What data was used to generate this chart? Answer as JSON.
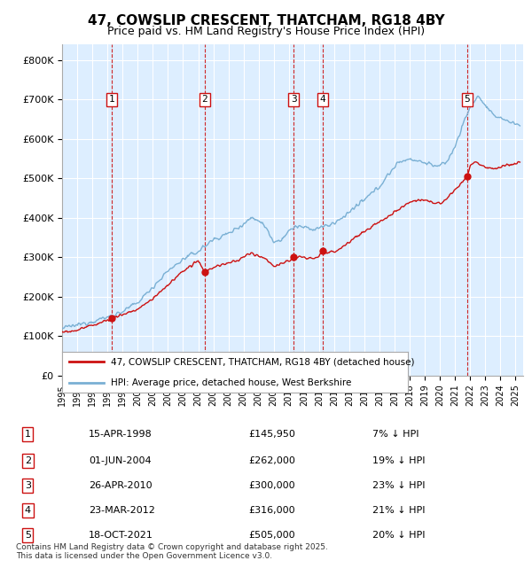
{
  "title": "47, COWSLIP CRESCENT, THATCHAM, RG18 4BY",
  "subtitle": "Price paid vs. HM Land Registry's House Price Index (HPI)",
  "ylabel_ticks": [
    "£0",
    "£100K",
    "£200K",
    "£300K",
    "£400K",
    "£500K",
    "£600K",
    "£700K",
    "£800K"
  ],
  "ytick_values": [
    0,
    100000,
    200000,
    300000,
    400000,
    500000,
    600000,
    700000,
    800000
  ],
  "ylim": [
    0,
    840000
  ],
  "xlim_start": 1995.0,
  "xlim_end": 2025.5,
  "background_color": "#ffffff",
  "plot_bg_color": "#ddeeff",
  "grid_color": "#ffffff",
  "transactions": [
    {
      "num": 1,
      "date_dec": 1998.29,
      "price": 145950,
      "label": "15-APR-1998",
      "price_str": "£145,950",
      "pct": "7% ↓ HPI"
    },
    {
      "num": 2,
      "date_dec": 2004.42,
      "price": 262000,
      "label": "01-JUN-2004",
      "price_str": "£262,000",
      "pct": "19% ↓ HPI"
    },
    {
      "num": 3,
      "date_dec": 2010.32,
      "price": 300000,
      "label": "26-APR-2010",
      "price_str": "£300,000",
      "pct": "23% ↓ HPI"
    },
    {
      "num": 4,
      "date_dec": 2012.23,
      "price": 316000,
      "label": "23-MAR-2012",
      "price_str": "£316,000",
      "pct": "21% ↓ HPI"
    },
    {
      "num": 5,
      "date_dec": 2021.8,
      "price": 505000,
      "label": "18-OCT-2021",
      "price_str": "£505,000",
      "pct": "20% ↓ HPI"
    }
  ],
  "hpi_color": "#7ab0d4",
  "price_color": "#cc1111",
  "legend_hpi_label": "HPI: Average price, detached house, West Berkshire",
  "legend_price_label": "47, COWSLIP CRESCENT, THATCHAM, RG18 4BY (detached house)",
  "footer": "Contains HM Land Registry data © Crown copyright and database right 2025.\nThis data is licensed under the Open Government Licence v3.0.",
  "x_ticks": [
    1995,
    1996,
    1997,
    1998,
    1999,
    2000,
    2001,
    2002,
    2003,
    2004,
    2005,
    2006,
    2007,
    2008,
    2009,
    2010,
    2011,
    2012,
    2013,
    2014,
    2015,
    2016,
    2017,
    2018,
    2019,
    2020,
    2021,
    2022,
    2023,
    2024,
    2025
  ]
}
